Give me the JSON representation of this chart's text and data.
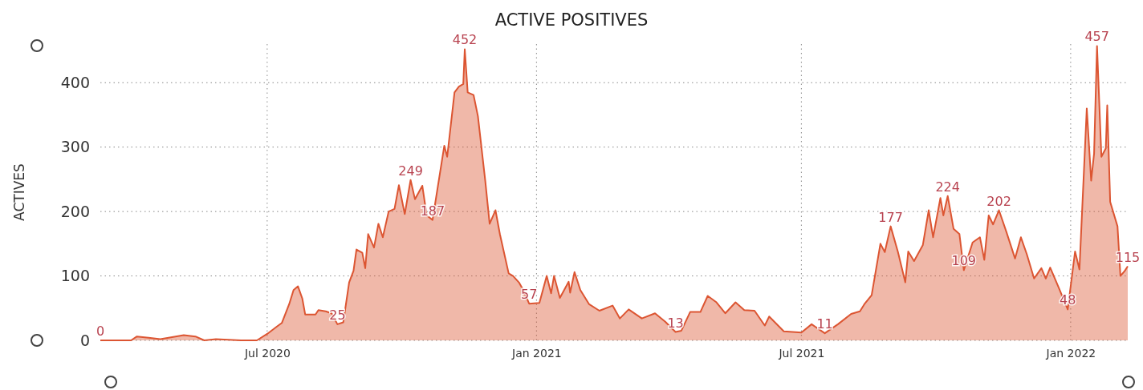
{
  "chart_data": {
    "type": "area",
    "title": "ACTIVE POSITIVES",
    "ylabel": "ACTIVES",
    "x": [
      "2020-03-09",
      "2020-03-30",
      "2020-04-03",
      "2020-04-11",
      "2020-04-19",
      "2020-05-05",
      "2020-05-13",
      "2020-05-19",
      "2020-05-27",
      "2020-06-13",
      "2020-06-24",
      "2020-07-01",
      "2020-07-08",
      "2020-07-11",
      "2020-07-16",
      "2020-07-19",
      "2020-07-22",
      "2020-07-25",
      "2020-07-27",
      "2020-08-03",
      "2020-08-05",
      "2020-08-10",
      "2020-08-14",
      "2020-08-18",
      "2020-08-22",
      "2020-08-26",
      "2020-08-29",
      "2020-08-31",
      "2020-09-04",
      "2020-09-06",
      "2020-09-08",
      "2020-09-12",
      "2020-09-15",
      "2020-09-18",
      "2020-09-22",
      "2020-09-26",
      "2020-09-29",
      "2020-10-03",
      "2020-10-07",
      "2020-10-10",
      "2020-10-15",
      "2020-10-18",
      "2020-10-22",
      "2020-10-30",
      "2020-11-01",
      "2020-11-06",
      "2020-11-09",
      "2020-11-12",
      "2020-11-13",
      "2020-11-15",
      "2020-11-19",
      "2020-11-22",
      "2020-11-27",
      "2020-11-30",
      "2020-12-04",
      "2020-12-07",
      "2020-12-13",
      "2020-12-16",
      "2020-12-20",
      "2020-12-23",
      "2020-12-27",
      "2021-01-03",
      "2021-01-08",
      "2021-01-11",
      "2021-01-13",
      "2021-01-17",
      "2021-01-23",
      "2021-01-24",
      "2021-01-27",
      "2021-01-31",
      "2021-02-06",
      "2021-02-13",
      "2021-02-22",
      "2021-02-27",
      "2021-03-05",
      "2021-03-14",
      "2021-03-23",
      "2021-03-30",
      "2021-04-06",
      "2021-04-10",
      "2021-04-16",
      "2021-04-23",
      "2021-04-28",
      "2021-05-04",
      "2021-05-10",
      "2021-05-17",
      "2021-05-23",
      "2021-05-30",
      "2021-06-06",
      "2021-06-09",
      "2021-06-19",
      "2021-07-01",
      "2021-07-08",
      "2021-07-17",
      "2021-07-26",
      "2021-08-04",
      "2021-08-10",
      "2021-08-13",
      "2021-08-18",
      "2021-08-24",
      "2021-08-27",
      "2021-08-31",
      "2021-09-05",
      "2021-09-10",
      "2021-09-12",
      "2021-09-16",
      "2021-09-22",
      "2021-09-26",
      "2021-09-29",
      "2021-10-04",
      "2021-10-06",
      "2021-10-09",
      "2021-10-13",
      "2021-10-17",
      "2021-10-20",
      "2021-10-26",
      "2021-10-31",
      "2021-11-03",
      "2021-11-06",
      "2021-11-09",
      "2021-11-13",
      "2021-11-18",
      "2021-11-24",
      "2021-11-28",
      "2021-12-02",
      "2021-12-07",
      "2021-12-12",
      "2021-12-15",
      "2021-12-18",
      "2021-12-24",
      "2021-12-30",
      "2022-01-04",
      "2022-01-07",
      "2022-01-12",
      "2022-01-15",
      "2022-01-17",
      "2022-01-19",
      "2022-01-22",
      "2022-01-25",
      "2022-01-26",
      "2022-01-28",
      "2022-02-02",
      "2022-02-04",
      "2022-02-07",
      "2022-02-09"
    ],
    "values": [
      0,
      0,
      6,
      4,
      2,
      8,
      6,
      0,
      2,
      0,
      0,
      10,
      22,
      27,
      56,
      78,
      84,
      65,
      40,
      40,
      47,
      45,
      42,
      25,
      28,
      90,
      108,
      141,
      136,
      112,
      165,
      144,
      181,
      160,
      200,
      204,
      241,
      196,
      249,
      219,
      240,
      194,
      187,
      302,
      285,
      385,
      394,
      398,
      452,
      385,
      381,
      348,
      248,
      181,
      202,
      165,
      104,
      100,
      90,
      78,
      57,
      58,
      100,
      73,
      100,
      66,
      91,
      74,
      106,
      78,
      56,
      46,
      54,
      34,
      48,
      34,
      42,
      29,
      13,
      15,
      44,
      44,
      69,
      59,
      42,
      59,
      47,
      46,
      23,
      37,
      14,
      12,
      25,
      11,
      25,
      41,
      45,
      56,
      70,
      150,
      137,
      177,
      137,
      90,
      138,
      123,
      148,
      202,
      160,
      221,
      194,
      224,
      173,
      165,
      109,
      152,
      160,
      125,
      194,
      180,
      202,
      169,
      127,
      160,
      134,
      96,
      112,
      96,
      113,
      81,
      48,
      138,
      110,
      360,
      248,
      290,
      457,
      285,
      298,
      365,
      215,
      177,
      100,
      108,
      115
    ],
    "value_labels": [
      "0",
      null,
      null,
      null,
      null,
      null,
      null,
      null,
      null,
      null,
      null,
      null,
      null,
      null,
      null,
      null,
      null,
      null,
      null,
      null,
      null,
      null,
      null,
      "25",
      null,
      null,
      null,
      null,
      null,
      null,
      null,
      null,
      null,
      null,
      null,
      null,
      null,
      null,
      "249",
      null,
      null,
      null,
      "187",
      null,
      null,
      null,
      null,
      null,
      "452",
      null,
      null,
      null,
      null,
      null,
      null,
      null,
      null,
      null,
      null,
      null,
      "57",
      null,
      null,
      null,
      null,
      null,
      null,
      null,
      null,
      null,
      null,
      null,
      null,
      null,
      null,
      null,
      null,
      null,
      "13",
      null,
      null,
      null,
      null,
      null,
      null,
      null,
      null,
      null,
      null,
      null,
      null,
      null,
      null,
      "11",
      null,
      null,
      null,
      null,
      null,
      null,
      null,
      "177",
      null,
      null,
      null,
      null,
      null,
      null,
      null,
      null,
      null,
      "224",
      null,
      null,
      "109",
      null,
      null,
      null,
      null,
      null,
      "202",
      null,
      null,
      null,
      null,
      null,
      null,
      null,
      null,
      null,
      "48",
      null,
      null,
      null,
      null,
      null,
      "457",
      null,
      null,
      null,
      null,
      null,
      null,
      null,
      "115"
    ],
    "color": "#dc5532",
    "xlim": [
      "2020-03-09",
      "2022-02-09"
    ],
    "xticks": [
      {
        "value": "2020-07-01",
        "label": "Jul 2020"
      },
      {
        "value": "2021-01-01",
        "label": "Jan 2021"
      },
      {
        "value": "2021-07-01",
        "label": "Jul 2021"
      },
      {
        "value": "2022-01-01",
        "label": "Jan 2022"
      }
    ],
    "ylim": [
      0,
      460
    ],
    "yticks": [
      0,
      100,
      200,
      300,
      400
    ],
    "grid": true
  }
}
